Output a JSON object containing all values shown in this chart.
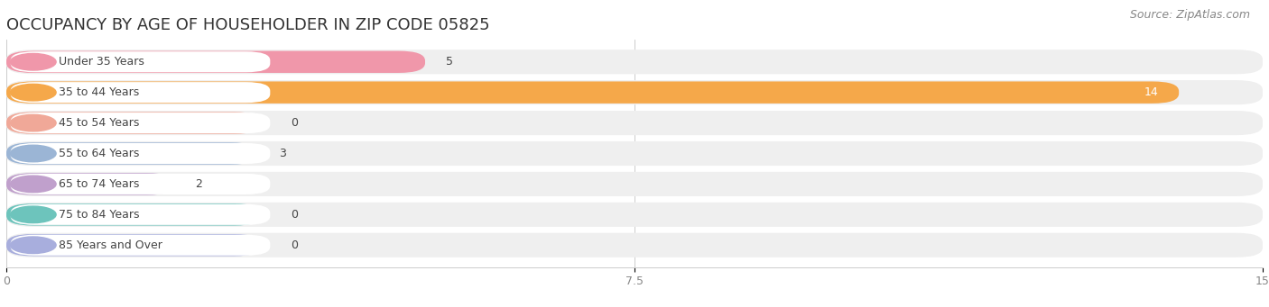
{
  "title": "OCCUPANCY BY AGE OF HOUSEHOLDER IN ZIP CODE 05825",
  "source": "Source: ZipAtlas.com",
  "categories": [
    "Under 35 Years",
    "35 to 44 Years",
    "45 to 54 Years",
    "55 to 64 Years",
    "65 to 74 Years",
    "75 to 84 Years",
    "85 Years and Over"
  ],
  "values": [
    5,
    14,
    0,
    3,
    2,
    0,
    0
  ],
  "bar_colors": [
    "#F097AA",
    "#F5A84A",
    "#F0A898",
    "#9BB5D5",
    "#C0A0CC",
    "#6DC4BC",
    "#A8AEDD"
  ],
  "bar_bg_colors": [
    "#F0E0E5",
    "#F5EAD8",
    "#F5E0D8",
    "#DEE8F2",
    "#E8DEF0",
    "#D0ECEA",
    "#DDDFF0"
  ],
  "row_bg_color": "#efefef",
  "white": "#ffffff",
  "xlim": [
    0,
    15
  ],
  "xticks": [
    0,
    7.5,
    15
  ],
  "title_fontsize": 13,
  "source_fontsize": 9,
  "label_fontsize": 9,
  "value_fontsize": 9,
  "background_color": "#ffffff",
  "text_color": "#444444",
  "tick_color": "#888888"
}
